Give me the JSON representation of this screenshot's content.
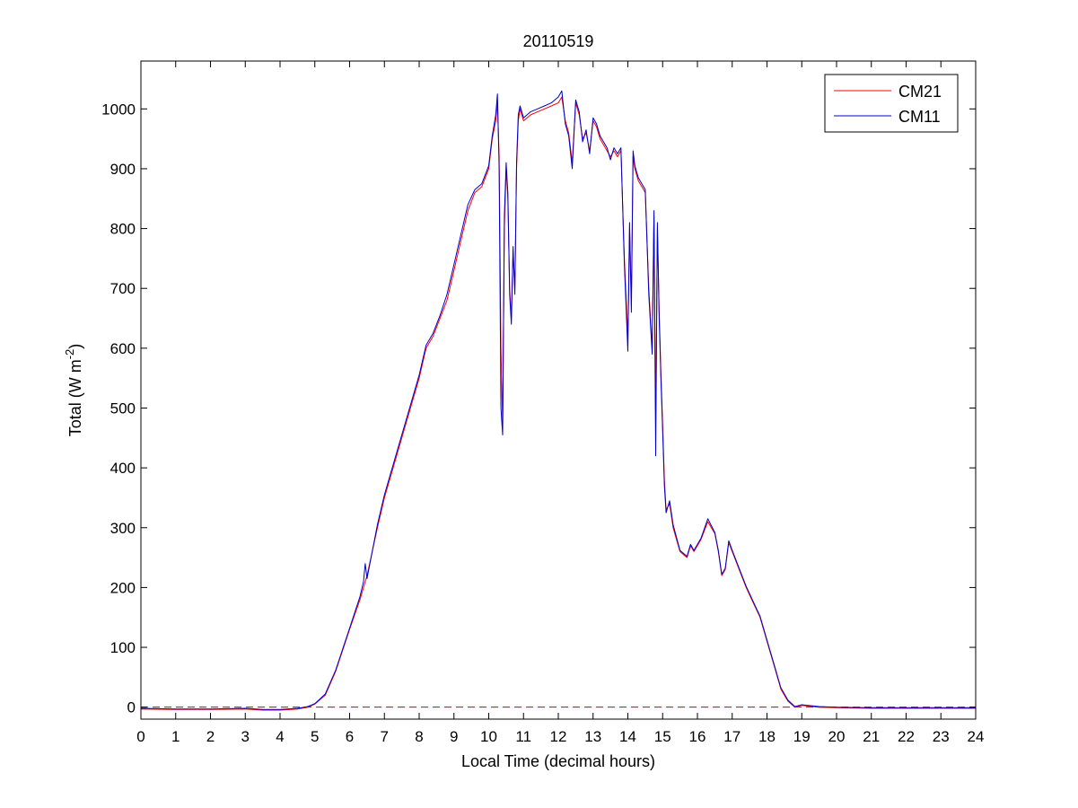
{
  "chart_data": {
    "type": "line",
    "title": "20110519",
    "xlabel": "Local Time (decimal hours)",
    "ylabel": {
      "main": "Total (W m",
      "superscript": "-2",
      "close": ")"
    },
    "xlim": [
      0,
      24
    ],
    "ylim": [
      -20,
      1080
    ],
    "xticks": [
      0,
      1,
      2,
      3,
      4,
      5,
      6,
      7,
      8,
      9,
      10,
      11,
      12,
      13,
      14,
      15,
      16,
      17,
      18,
      19,
      20,
      21,
      22,
      23,
      24
    ],
    "yticks": [
      0,
      100,
      200,
      300,
      400,
      500,
      600,
      700,
      800,
      900,
      1000
    ],
    "grid": false,
    "legend_position": "top-right",
    "reference_line": {
      "y": 0,
      "style": "dashed",
      "color": "#cc0000"
    },
    "series": [
      {
        "name": "CM21",
        "color": "#ff0000",
        "points": [
          [
            0,
            -3
          ],
          [
            1,
            -4
          ],
          [
            2,
            -4
          ],
          [
            3,
            -3
          ],
          [
            3.5,
            -5
          ],
          [
            4,
            -5
          ],
          [
            4.5,
            -3
          ],
          [
            4.8,
            0
          ],
          [
            5,
            5
          ],
          [
            5.3,
            20
          ],
          [
            5.6,
            60
          ],
          [
            6,
            130
          ],
          [
            6.3,
            180
          ],
          [
            6.5,
            220
          ],
          [
            6.8,
            300
          ],
          [
            7,
            350
          ],
          [
            7.3,
            410
          ],
          [
            7.6,
            470
          ],
          [
            8,
            550
          ],
          [
            8.2,
            600
          ],
          [
            8.4,
            620
          ],
          [
            8.6,
            650
          ],
          [
            8.8,
            680
          ],
          [
            9,
            730
          ],
          [
            9.2,
            780
          ],
          [
            9.4,
            830
          ],
          [
            9.6,
            860
          ],
          [
            9.8,
            870
          ],
          [
            10,
            900
          ],
          [
            10.1,
            950
          ],
          [
            10.2,
            980
          ],
          [
            10.25,
            1010
          ],
          [
            10.3,
            920
          ],
          [
            10.35,
            600
          ],
          [
            10.4,
            470
          ],
          [
            10.45,
            800
          ],
          [
            10.5,
            900
          ],
          [
            10.55,
            850
          ],
          [
            10.6,
            700
          ],
          [
            10.65,
            650
          ],
          [
            10.7,
            760
          ],
          [
            10.75,
            700
          ],
          [
            10.8,
            900
          ],
          [
            10.85,
            980
          ],
          [
            10.9,
            1000
          ],
          [
            11,
            980
          ],
          [
            11.2,
            990
          ],
          [
            11.4,
            995
          ],
          [
            11.6,
            1000
          ],
          [
            11.8,
            1005
          ],
          [
            12,
            1010
          ],
          [
            12.1,
            1020
          ],
          [
            12.2,
            980
          ],
          [
            12.3,
            960
          ],
          [
            12.4,
            910
          ],
          [
            12.5,
            1010
          ],
          [
            12.6,
            990
          ],
          [
            12.7,
            950
          ],
          [
            12.8,
            960
          ],
          [
            12.9,
            930
          ],
          [
            13,
            980
          ],
          [
            13.1,
            970
          ],
          [
            13.2,
            950
          ],
          [
            13.3,
            940
          ],
          [
            13.4,
            930
          ],
          [
            13.5,
            920
          ],
          [
            13.6,
            930
          ],
          [
            13.7,
            920
          ],
          [
            13.8,
            930
          ],
          [
            13.9,
            750
          ],
          [
            14,
            620
          ],
          [
            14.05,
            800
          ],
          [
            14.1,
            680
          ],
          [
            14.15,
            920
          ],
          [
            14.2,
            900
          ],
          [
            14.3,
            880
          ],
          [
            14.4,
            870
          ],
          [
            14.5,
            860
          ],
          [
            14.6,
            700
          ],
          [
            14.7,
            600
          ],
          [
            14.75,
            820
          ],
          [
            14.8,
            480
          ],
          [
            14.85,
            800
          ],
          [
            14.9,
            660
          ],
          [
            14.95,
            560
          ],
          [
            15,
            470
          ],
          [
            15.05,
            380
          ],
          [
            15.1,
            330
          ],
          [
            15.2,
            340
          ],
          [
            15.3,
            300
          ],
          [
            15.5,
            260
          ],
          [
            15.7,
            250
          ],
          [
            15.8,
            270
          ],
          [
            15.9,
            260
          ],
          [
            16,
            270
          ],
          [
            16.1,
            280
          ],
          [
            16.3,
            310
          ],
          [
            16.5,
            290
          ],
          [
            16.6,
            260
          ],
          [
            16.7,
            220
          ],
          [
            16.8,
            230
          ],
          [
            16.9,
            275
          ],
          [
            17,
            260
          ],
          [
            17.2,
            230
          ],
          [
            17.4,
            200
          ],
          [
            17.6,
            175
          ],
          [
            17.8,
            150
          ],
          [
            18,
            110
          ],
          [
            18.2,
            70
          ],
          [
            18.4,
            30
          ],
          [
            18.6,
            10
          ],
          [
            18.8,
            0
          ],
          [
            19,
            3
          ],
          [
            19.5,
            0
          ],
          [
            20,
            -1
          ],
          [
            21,
            -2
          ],
          [
            22,
            -2
          ],
          [
            23,
            -2
          ],
          [
            24,
            -2
          ]
        ]
      },
      {
        "name": "CM11",
        "color": "#0000cc",
        "points": [
          [
            0,
            -2
          ],
          [
            1,
            -3
          ],
          [
            2,
            -3
          ],
          [
            3,
            -2
          ],
          [
            3.5,
            -4
          ],
          [
            4,
            -4
          ],
          [
            4.5,
            -2
          ],
          [
            4.8,
            1
          ],
          [
            5,
            6
          ],
          [
            5.3,
            22
          ],
          [
            5.6,
            62
          ],
          [
            6,
            132
          ],
          [
            6.3,
            185
          ],
          [
            6.4,
            210
          ],
          [
            6.45,
            240
          ],
          [
            6.5,
            215
          ],
          [
            6.8,
            305
          ],
          [
            7,
            355
          ],
          [
            7.3,
            415
          ],
          [
            7.6,
            475
          ],
          [
            8,
            555
          ],
          [
            8.2,
            605
          ],
          [
            8.4,
            625
          ],
          [
            8.6,
            655
          ],
          [
            8.8,
            690
          ],
          [
            9,
            740
          ],
          [
            9.2,
            790
          ],
          [
            9.4,
            840
          ],
          [
            9.6,
            865
          ],
          [
            9.8,
            875
          ],
          [
            10,
            905
          ],
          [
            10.1,
            955
          ],
          [
            10.2,
            990
          ],
          [
            10.25,
            1025
          ],
          [
            10.3,
            900
          ],
          [
            10.35,
            500
          ],
          [
            10.4,
            455
          ],
          [
            10.45,
            820
          ],
          [
            10.5,
            910
          ],
          [
            10.55,
            860
          ],
          [
            10.6,
            690
          ],
          [
            10.65,
            640
          ],
          [
            10.7,
            770
          ],
          [
            10.75,
            690
          ],
          [
            10.8,
            910
          ],
          [
            10.85,
            990
          ],
          [
            10.9,
            1005
          ],
          [
            11,
            985
          ],
          [
            11.2,
            995
          ],
          [
            11.4,
            1000
          ],
          [
            11.6,
            1005
          ],
          [
            11.8,
            1010
          ],
          [
            12,
            1020
          ],
          [
            12.1,
            1030
          ],
          [
            12.2,
            975
          ],
          [
            12.3,
            955
          ],
          [
            12.4,
            900
          ],
          [
            12.5,
            1015
          ],
          [
            12.6,
            995
          ],
          [
            12.7,
            945
          ],
          [
            12.8,
            965
          ],
          [
            12.9,
            925
          ],
          [
            13,
            985
          ],
          [
            13.1,
            975
          ],
          [
            13.2,
            955
          ],
          [
            13.3,
            945
          ],
          [
            13.4,
            935
          ],
          [
            13.5,
            915
          ],
          [
            13.6,
            935
          ],
          [
            13.7,
            925
          ],
          [
            13.8,
            935
          ],
          [
            13.9,
            740
          ],
          [
            14,
            595
          ],
          [
            14.05,
            810
          ],
          [
            14.1,
            660
          ],
          [
            14.15,
            930
          ],
          [
            14.2,
            905
          ],
          [
            14.3,
            885
          ],
          [
            14.4,
            875
          ],
          [
            14.5,
            865
          ],
          [
            14.6,
            690
          ],
          [
            14.7,
            590
          ],
          [
            14.75,
            830
          ],
          [
            14.8,
            420
          ],
          [
            14.85,
            810
          ],
          [
            14.9,
            650
          ],
          [
            14.95,
            550
          ],
          [
            15,
            460
          ],
          [
            15.05,
            370
          ],
          [
            15.1,
            325
          ],
          [
            15.2,
            345
          ],
          [
            15.3,
            305
          ],
          [
            15.5,
            262
          ],
          [
            15.7,
            252
          ],
          [
            15.8,
            272
          ],
          [
            15.9,
            262
          ],
          [
            16,
            272
          ],
          [
            16.1,
            282
          ],
          [
            16.3,
            315
          ],
          [
            16.5,
            292
          ],
          [
            16.6,
            262
          ],
          [
            16.7,
            222
          ],
          [
            16.8,
            232
          ],
          [
            16.9,
            278
          ],
          [
            17,
            262
          ],
          [
            17.2,
            232
          ],
          [
            17.4,
            202
          ],
          [
            17.6,
            177
          ],
          [
            17.8,
            152
          ],
          [
            18,
            112
          ],
          [
            18.2,
            72
          ],
          [
            18.4,
            32
          ],
          [
            18.6,
            12
          ],
          [
            18.8,
            1
          ],
          [
            19,
            4
          ],
          [
            19.5,
            1
          ],
          [
            20,
            0
          ],
          [
            21,
            -1
          ],
          [
            22,
            -1
          ],
          [
            23,
            -1
          ],
          [
            24,
            -1
          ]
        ]
      }
    ]
  }
}
